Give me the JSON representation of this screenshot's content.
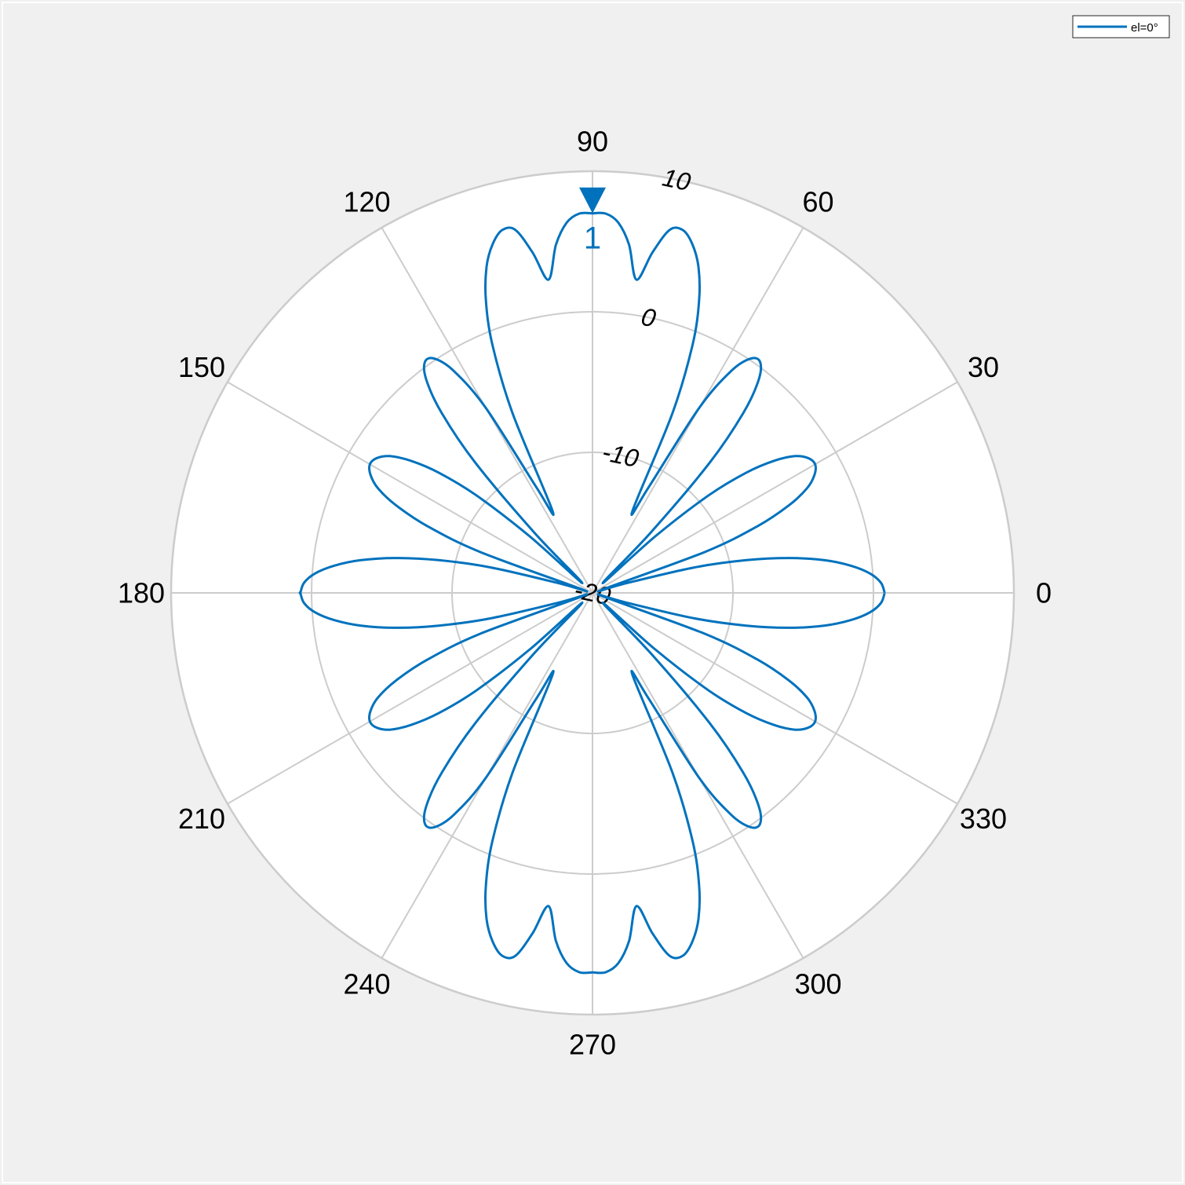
{
  "chart_data": {
    "type": "polar-line",
    "title": "",
    "theta_unit": "deg",
    "theta_ticks": [
      0,
      30,
      60,
      90,
      120,
      150,
      180,
      210,
      240,
      270,
      300,
      330
    ],
    "r_ticks": [
      -20,
      -10,
      0,
      10
    ],
    "rlim": [
      -20,
      10
    ],
    "grid": true,
    "legend": {
      "placement": "top-right",
      "entries": [
        "el=0°"
      ]
    },
    "series": [
      {
        "name": "el=0°",
        "color": "#0072bd",
        "pattern": {
          "description": "pattern in dB: |sin(2*theta)| array factor of 8 elements scaled, max at 90°",
          "peak_db": 7.0,
          "null_floor_db": -20
        },
        "theta": [
          0,
          2,
          4,
          6,
          8,
          10,
          12,
          14,
          16,
          18,
          20,
          22,
          24,
          26,
          28,
          30,
          32,
          34,
          36,
          38,
          40,
          42,
          44,
          46,
          48,
          50,
          52,
          54,
          56,
          58,
          60,
          62,
          64,
          66,
          68,
          70,
          72,
          74,
          76,
          78,
          80,
          82,
          84,
          86,
          88,
          90
        ],
        "r": [
          0.8,
          0.55,
          -0.2,
          -1.5,
          -3.3,
          -5.7,
          -8.8,
          -12.5,
          -17.5,
          -19.3,
          -11.5,
          -7.3,
          -4.7,
          -3.0,
          -2.1,
          -1.7,
          -1.9,
          -2.6,
          -4.0,
          -6.1,
          -9.2,
          -14.0,
          -19.0,
          -14.0,
          -7.5,
          -3.3,
          -0.8,
          0.3,
          0.1,
          -1.4,
          -4.8,
          -11.5,
          -13.5,
          -6.0,
          -1.0,
          2.2,
          4.4,
          5.8,
          6.6,
          6.4,
          4.6,
          2.5,
          4.9,
          6.4,
          7.0,
          7.0
        ]
      }
    ],
    "markers": [
      {
        "theta": 90,
        "r": 7.0,
        "label": "1",
        "color": "#0072bd"
      }
    ]
  }
}
